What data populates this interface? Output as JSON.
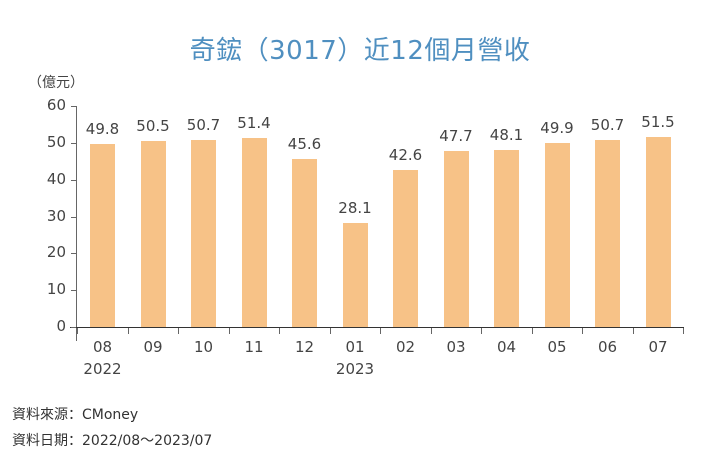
{
  "title": "奇鋐（3017）近12個月營收",
  "unit_label": "（億元）",
  "chart_data": {
    "type": "bar",
    "title": "奇鋐（3017）近12個月營收",
    "xlabel": "",
    "ylabel": "（億元）",
    "ylim": [
      0,
      60
    ],
    "yticks": [
      0,
      10,
      20,
      30,
      40,
      50,
      60
    ],
    "grid": false,
    "legend": null,
    "categories": [
      "08",
      "09",
      "10",
      "11",
      "12",
      "01",
      "02",
      "03",
      "04",
      "05",
      "06",
      "07"
    ],
    "year_labels": [
      {
        "index": 0,
        "label": "2022"
      },
      {
        "index": 5,
        "label": "2023"
      }
    ],
    "values": [
      49.8,
      50.5,
      50.7,
      51.4,
      45.6,
      28.1,
      42.6,
      47.7,
      48.1,
      49.9,
      50.7,
      51.5
    ],
    "value_labels": [
      "49.8",
      "50.5",
      "50.7",
      "51.4",
      "45.6",
      "28.1",
      "42.6",
      "47.7",
      "48.1",
      "49.9",
      "50.7",
      "51.5"
    ],
    "bar_color": "#f7c287"
  },
  "yticks_labels": [
    "0",
    "10",
    "20",
    "30",
    "40",
    "50",
    "60"
  ],
  "footer": {
    "source": "資料來源：CMoney",
    "date_range": "資料日期：2022/08～2023/07"
  },
  "colors": {
    "title": "#4f8fc0",
    "bar": "#f7c287"
  }
}
